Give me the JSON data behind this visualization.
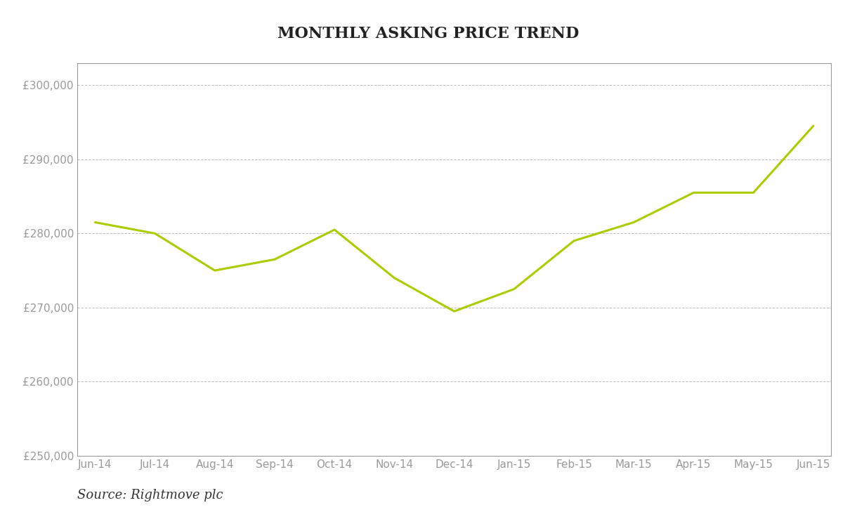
{
  "title": "Monthly Asking Price Trend",
  "categories": [
    "Jun-14",
    "Jul-14",
    "Aug-14",
    "Sep-14",
    "Oct-14",
    "Nov-14",
    "Dec-14",
    "Jan-15",
    "Feb-15",
    "Mar-15",
    "Apr-15",
    "May-15",
    "Jun-15"
  ],
  "values": [
    281500,
    280000,
    275000,
    276500,
    280500,
    274000,
    269500,
    272500,
    279000,
    281500,
    285500,
    285500,
    294500
  ],
  "line_color": "#AACC00",
  "line_width": 2.2,
  "ylim": [
    250000,
    303000
  ],
  "yticks": [
    250000,
    260000,
    270000,
    280000,
    290000,
    300000
  ],
  "background_color": "#ffffff",
  "plot_bg_color": "#ffffff",
  "grid_color": "#bbbbbb",
  "title_fontsize": 16,
  "tick_color": "#999999",
  "tick_fontsize": 11,
  "source_text": "Source: Rightmove plc",
  "border_color": "#999999"
}
